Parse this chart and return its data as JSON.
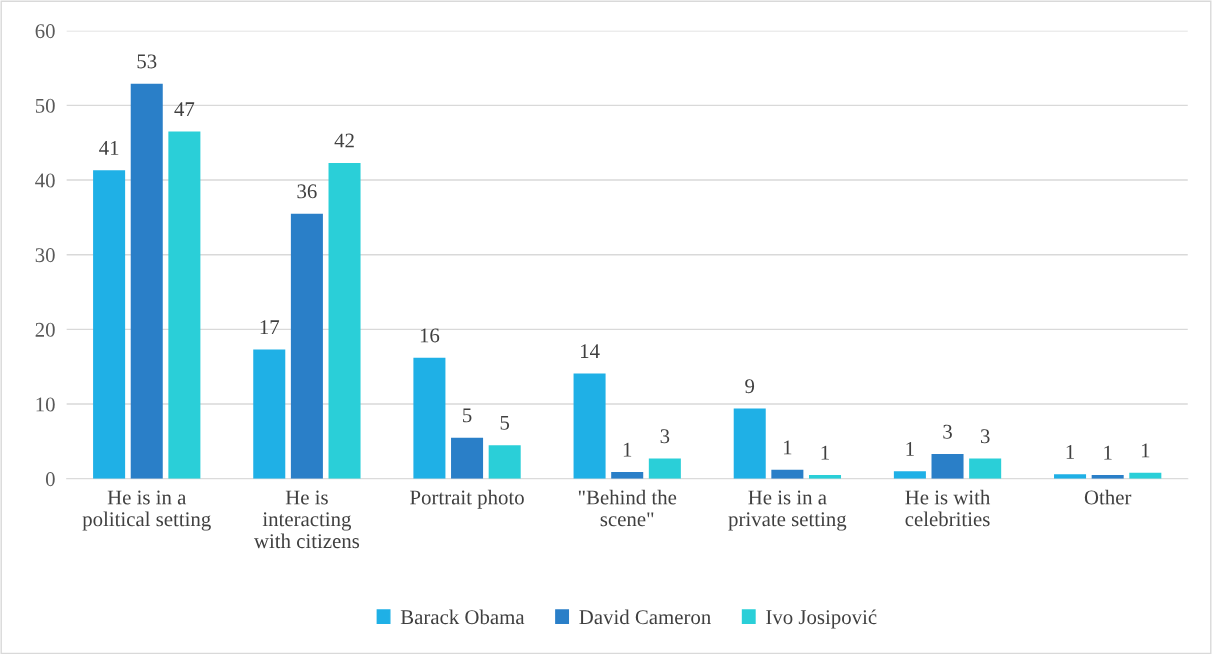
{
  "chart_data": {
    "type": "bar",
    "categories": [
      "He is in a\npolitical setting",
      "He is\ninteracting\nwith citizens",
      "Portrait photo",
      "\"Behind the\nscene\"",
      "He is in a\nprivate setting",
      "He is with\ncelebrities",
      "Other"
    ],
    "series": [
      {
        "name": "Barack Obama",
        "color": "#1fb0e6",
        "values": [
          41.3,
          17.3,
          16.2,
          14.1,
          9.4,
          1.0,
          0.6
        ],
        "value_labels": [
          "41",
          "17",
          "16",
          "14",
          "9",
          "1",
          "1"
        ]
      },
      {
        "name": "David Cameron",
        "color": "#2a7fc8",
        "values": [
          52.9,
          35.5,
          5.5,
          0.9,
          1.2,
          3.3,
          0.5
        ],
        "value_labels": [
          "53",
          "36",
          "5",
          "1",
          "1",
          "3",
          "1"
        ]
      },
      {
        "name": "Ivo Josipović",
        "color": "#2acfd8",
        "values": [
          46.5,
          42.3,
          4.5,
          2.7,
          0.5,
          2.7,
          0.8
        ],
        "value_labels": [
          "47",
          "42",
          "5",
          "3",
          "1",
          "3",
          "1"
        ]
      }
    ],
    "ylim": [
      0,
      60
    ],
    "yticks": [
      0,
      10,
      20,
      30,
      40,
      50,
      60
    ],
    "grid": "y",
    "legend": "bottom"
  }
}
